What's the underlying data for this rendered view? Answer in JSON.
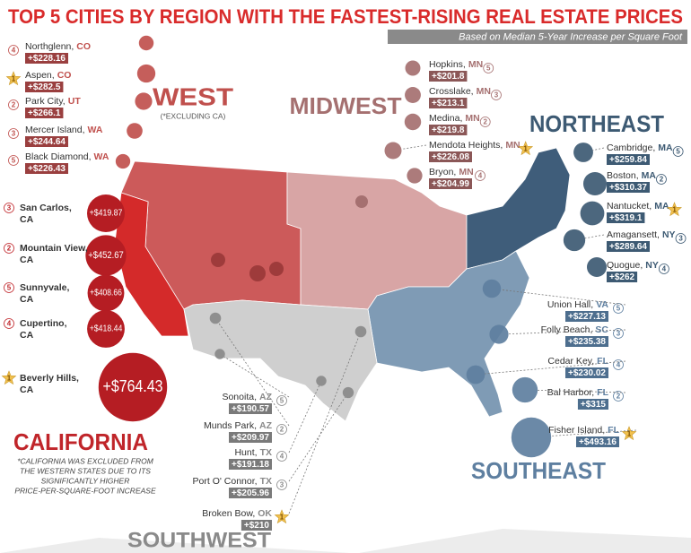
{
  "header": {
    "title": "TOP 5 CITIES BY REGION WITH THE FASTEST-RISING REAL ESTATE PRICES",
    "subtitle": "Based on Median 5-Year Increase per Square Foot"
  },
  "regions": [
    {
      "name": "WEST",
      "note": "(*EXCLUDING CA)",
      "cities": [
        {
          "name": "Northglenn,",
          "state": "CO",
          "value": 228.16,
          "value_label": "+$228.16",
          "rank": 4
        },
        {
          "name": "Aspen,",
          "state": "CO",
          "value": 282.5,
          "value_label": "+$282.5",
          "rank": 1
        },
        {
          "name": "Park City,",
          "state": "UT",
          "value": 266.1,
          "value_label": "+$266.1",
          "rank": 2
        },
        {
          "name": "Mercer Island,",
          "state": "WA",
          "value": 244.64,
          "value_label": "+$244.64",
          "rank": 3
        },
        {
          "name": "Black Diamond,",
          "state": "WA",
          "value": 226.43,
          "value_label": "+$226.43",
          "rank": 5
        }
      ]
    },
    {
      "name": "MIDWEST",
      "cities": [
        {
          "name": "Hopkins,",
          "state": "MN",
          "value": 201.8,
          "value_label": "+$201.8",
          "rank": 5
        },
        {
          "name": "Crosslake,",
          "state": "MN",
          "value": 213.1,
          "value_label": "+$213.1",
          "rank": 3
        },
        {
          "name": "Medina,",
          "state": "MN",
          "value": 219.8,
          "value_label": "+$219.8",
          "rank": 2
        },
        {
          "name": "Mendota Heights,",
          "state": "MN",
          "value": 226.08,
          "value_label": "+$226.08",
          "rank": 1
        },
        {
          "name": "Bryon,",
          "state": "MN",
          "value": 204.99,
          "value_label": "+$204.99",
          "rank": 4
        }
      ]
    },
    {
      "name": "NORTHEAST",
      "cities": [
        {
          "name": "Cambridge,",
          "state": "MA",
          "value": 259.84,
          "value_label": "+$259.84",
          "rank": 5
        },
        {
          "name": "Boston,",
          "state": "MA",
          "value": 310.37,
          "value_label": "+$310.37",
          "rank": 2
        },
        {
          "name": "Nantucket,",
          "state": "MA",
          "value": 319.1,
          "value_label": "+$319.1",
          "rank": 1
        },
        {
          "name": "Amagansett,",
          "state": "NY",
          "value": 289.64,
          "value_label": "+$289.64",
          "rank": 3
        },
        {
          "name": "Quogue,",
          "state": "NY",
          "value": 262,
          "value_label": "+$262",
          "rank": 4
        }
      ]
    },
    {
      "name": "CALIFORNIA",
      "note": [
        "*CALIFORNIA WAS EXCLUDED FROM",
        "THE WESTERN STATES DUE TO ITS",
        "SIGNIFICANTLY HIGHER",
        "PRICE-PER-SQUARE-FOOT INCREASE"
      ],
      "cities": [
        {
          "name": "San Carlos,",
          "state": "CA",
          "value": 419.87,
          "value_label": "+$419.87",
          "rank": 3
        },
        {
          "name": "Mountain View,",
          "state": "CA",
          "value": 452.67,
          "value_label": "+$452.67",
          "rank": 2
        },
        {
          "name": "Sunnyvale,",
          "state": "CA",
          "value": 408.66,
          "value_label": "+$408.66",
          "rank": 5
        },
        {
          "name": "Cupertino,",
          "state": "CA",
          "value": 418.44,
          "value_label": "+$418.44",
          "rank": 4
        },
        {
          "name": "Beverly Hills,",
          "state": "CA",
          "value": 764.43,
          "value_label": "+$764.43",
          "rank": 1
        }
      ]
    },
    {
      "name": "SOUTHWEST",
      "cities": [
        {
          "name": "Sonoita,",
          "state": "AZ",
          "value": 190.57,
          "value_label": "+$190.57",
          "rank": 5
        },
        {
          "name": "Munds Park,",
          "state": "AZ",
          "value": 209.97,
          "value_label": "+$209.97",
          "rank": 2
        },
        {
          "name": "Hunt,",
          "state": "TX",
          "value": 191.18,
          "value_label": "+$191.18",
          "rank": 4
        },
        {
          "name": "Port O' Connor,",
          "state": "TX",
          "value": 205.96,
          "value_label": "+$205.96",
          "rank": 3
        },
        {
          "name": "Broken Bow,",
          "state": "OK",
          "value": 210,
          "value_label": "+$210",
          "rank": 1
        }
      ]
    },
    {
      "name": "SOUTHEAST",
      "cities": [
        {
          "name": "Union Hall,",
          "state": "VA",
          "value": 227.13,
          "value_label": "+$227.13",
          "rank": 5
        },
        {
          "name": "Folly Beach,",
          "state": "SC",
          "value": 235.38,
          "value_label": "+$235.38",
          "rank": 3
        },
        {
          "name": "Cedar Key,",
          "state": "FL",
          "value": 230.02,
          "value_label": "+$230.02",
          "rank": 4
        },
        {
          "name": "Bal Harbor,",
          "state": "FL",
          "value": 315,
          "value_label": "+$315",
          "rank": 2
        },
        {
          "name": "Fisher Island,",
          "state": "FL",
          "value": 493.16,
          "value_label": "+$493.16",
          "rank": 1
        }
      ]
    }
  ]
}
